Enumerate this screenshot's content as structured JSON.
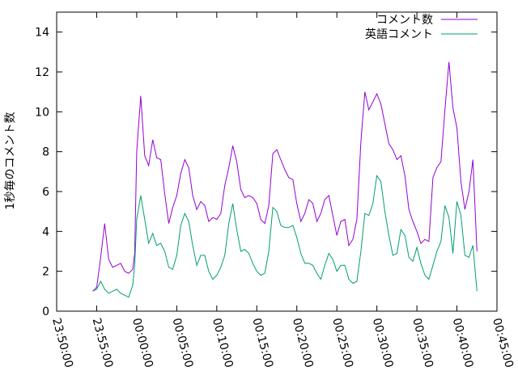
{
  "chart_data": {
    "type": "line",
    "title": "",
    "xlabel": "",
    "ylabel": "1秒毎のコメント数",
    "ylim": [
      0,
      15
    ],
    "yticks": [
      0,
      2,
      4,
      6,
      8,
      10,
      12,
      14
    ],
    "xlim": [
      "23:50:00",
      "00:45:00"
    ],
    "xticks": [
      "23:50:00",
      "23:55:00",
      "00:00:00",
      "00:05:00",
      "00:10:00",
      "00:15:00",
      "00:20:00",
      "00:25:00",
      "00:30:00",
      "00:35:00",
      "00:40:00",
      "00:45:00"
    ],
    "grid": false,
    "legend": "top-right",
    "series": [
      {
        "name": "コメント数",
        "color": "#9400d3",
        "x": [
          "23:54:30",
          "23:55:00",
          "23:55:30",
          "23:56:00",
          "23:56:30",
          "23:57:00",
          "23:57:30",
          "23:58:00",
          "23:58:30",
          "23:59:00",
          "23:59:30",
          "23:59:45",
          "00:00:00",
          "00:00:30",
          "00:01:00",
          "00:01:30",
          "00:02:00",
          "00:02:30",
          "00:03:00",
          "00:03:30",
          "00:04:00",
          "00:04:30",
          "00:05:00",
          "00:05:30",
          "00:06:00",
          "00:06:30",
          "00:07:00",
          "00:07:30",
          "00:08:00",
          "00:08:30",
          "00:09:00",
          "00:09:30",
          "00:10:00",
          "00:10:30",
          "00:11:00",
          "00:11:30",
          "00:12:00",
          "00:12:30",
          "00:13:00",
          "00:13:30",
          "00:14:00",
          "00:14:30",
          "00:15:00",
          "00:15:30",
          "00:16:00",
          "00:16:30",
          "00:17:00",
          "00:17:30",
          "00:18:00",
          "00:18:30",
          "00:19:00",
          "00:19:30",
          "00:20:00",
          "00:20:30",
          "00:21:00",
          "00:21:30",
          "00:22:00",
          "00:22:30",
          "00:23:00",
          "00:23:30",
          "00:24:00",
          "00:24:30",
          "00:25:00",
          "00:25:30",
          "00:26:00",
          "00:26:30",
          "00:27:00",
          "00:27:30",
          "00:28:00",
          "00:28:30",
          "00:29:00",
          "00:29:30",
          "00:30:00",
          "00:30:30",
          "00:31:00",
          "00:31:30",
          "00:32:00",
          "00:32:30",
          "00:33:00",
          "00:33:30",
          "00:34:00",
          "00:34:30",
          "00:35:00",
          "00:35:30",
          "00:36:00",
          "00:36:30",
          "00:37:00",
          "00:37:30",
          "00:38:00",
          "00:38:30",
          "00:39:00",
          "00:39:30",
          "00:40:00",
          "00:40:30",
          "00:41:00",
          "00:41:30",
          "00:42:00",
          "00:42:30"
        ],
        "values": [
          1.0,
          1.2,
          2.7,
          4.4,
          2.6,
          2.2,
          2.3,
          2.4,
          2.0,
          1.9,
          2.1,
          2.9,
          8.0,
          10.8,
          7.8,
          7.3,
          8.6,
          7.7,
          7.6,
          5.9,
          4.4,
          5.2,
          5.8,
          6.9,
          7.6,
          7.2,
          5.8,
          5.1,
          5.5,
          5.3,
          4.5,
          4.7,
          4.6,
          4.9,
          6.3,
          7.2,
          8.3,
          7.5,
          6.1,
          5.7,
          5.8,
          5.7,
          5.4,
          4.6,
          4.4,
          5.3,
          7.9,
          8.1,
          7.6,
          7.1,
          6.7,
          6.6,
          5.4,
          4.5,
          4.9,
          5.6,
          5.4,
          4.5,
          4.9,
          5.6,
          5.8,
          4.8,
          3.8,
          4.5,
          4.6,
          3.3,
          3.6,
          4.6,
          8.5,
          11.0,
          10.1,
          10.5,
          10.9,
          10.4,
          9.4,
          8.4,
          8.1,
          7.6,
          7.8,
          6.8,
          5.1,
          4.5,
          4.0,
          3.4,
          3.6,
          3.5,
          6.7,
          7.2,
          7.5,
          10.1,
          12.5,
          10.2,
          9.2,
          6.5,
          5.1,
          6.0,
          7.6,
          3.0
        ]
      },
      {
        "name": "英語コメント",
        "color": "#009e73",
        "x": [
          "23:54:30",
          "23:55:00",
          "23:55:30",
          "23:56:00",
          "23:56:30",
          "23:57:00",
          "23:57:30",
          "23:58:00",
          "23:58:30",
          "23:59:00",
          "23:59:30",
          "23:59:45",
          "00:00:00",
          "00:00:30",
          "00:01:00",
          "00:01:30",
          "00:02:00",
          "00:02:30",
          "00:03:00",
          "00:03:30",
          "00:04:00",
          "00:04:30",
          "00:05:00",
          "00:05:30",
          "00:06:00",
          "00:06:30",
          "00:07:00",
          "00:07:30",
          "00:08:00",
          "00:08:30",
          "00:09:00",
          "00:09:30",
          "00:10:00",
          "00:10:30",
          "00:11:00",
          "00:11:30",
          "00:12:00",
          "00:12:30",
          "00:13:00",
          "00:13:30",
          "00:14:00",
          "00:14:30",
          "00:15:00",
          "00:15:30",
          "00:16:00",
          "00:16:30",
          "00:17:00",
          "00:17:30",
          "00:18:00",
          "00:18:30",
          "00:19:00",
          "00:19:30",
          "00:20:00",
          "00:20:30",
          "00:21:00",
          "00:21:30",
          "00:22:00",
          "00:22:30",
          "00:23:00",
          "00:23:30",
          "00:24:00",
          "00:24:30",
          "00:25:00",
          "00:25:30",
          "00:26:00",
          "00:26:30",
          "00:27:00",
          "00:27:30",
          "00:28:00",
          "00:28:30",
          "00:29:00",
          "00:29:30",
          "00:30:00",
          "00:30:30",
          "00:31:00",
          "00:31:30",
          "00:32:00",
          "00:32:30",
          "00:33:00",
          "00:33:30",
          "00:34:00",
          "00:34:30",
          "00:35:00",
          "00:35:30",
          "00:36:00",
          "00:36:30",
          "00:37:00",
          "00:37:30",
          "00:38:00",
          "00:38:30",
          "00:39:00",
          "00:39:30",
          "00:40:00",
          "00:40:30",
          "00:41:00",
          "00:41:30",
          "00:42:00",
          "00:42:30"
        ],
        "values": [
          1.0,
          1.1,
          1.5,
          1.1,
          0.9,
          1.0,
          1.1,
          0.9,
          0.8,
          0.7,
          1.3,
          2.3,
          4.6,
          5.8,
          4.6,
          3.4,
          3.9,
          3.3,
          3.4,
          3.0,
          2.2,
          2.1,
          2.8,
          4.3,
          4.9,
          4.5,
          3.3,
          2.3,
          2.8,
          2.8,
          2.0,
          1.6,
          1.8,
          2.2,
          2.8,
          4.4,
          5.4,
          4.1,
          3.0,
          3.1,
          2.9,
          2.4,
          2.0,
          1.8,
          1.9,
          3.0,
          5.2,
          5.0,
          4.3,
          4.2,
          4.2,
          4.3,
          3.7,
          2.9,
          2.4,
          2.4,
          2.3,
          1.9,
          1.6,
          2.3,
          2.9,
          2.6,
          2.0,
          2.3,
          2.3,
          1.6,
          1.4,
          1.5,
          3.0,
          4.9,
          4.8,
          5.4,
          6.8,
          6.5,
          5.0,
          3.8,
          2.8,
          2.9,
          4.1,
          3.8,
          2.7,
          2.5,
          3.2,
          2.4,
          1.8,
          1.6,
          2.3,
          3.0,
          3.5,
          5.3,
          4.7,
          2.9,
          5.5,
          4.8,
          2.8,
          2.7,
          3.3,
          1.0
        ]
      }
    ]
  }
}
